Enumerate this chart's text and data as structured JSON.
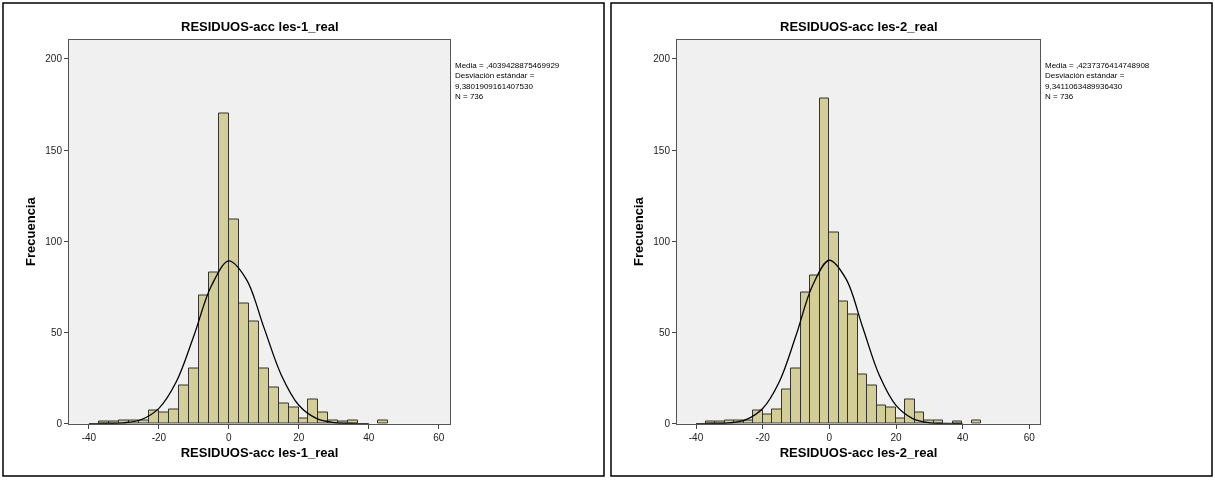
{
  "chart_data": [
    {
      "type": "histogram",
      "title": "RESIDUOS-acc les-1_real",
      "xlabel": "RESIDUOS-acc les-1_real",
      "ylabel": "Frecuencia",
      "annotations": [
        "Media = ,4039428875469929\nDesviación estándar =\n9,3801909161407530\nN = 736"
      ],
      "bins": [
        -37.1,
        -34.25,
        -31.4,
        -28.55,
        -25.7,
        -22.85,
        -20.0,
        -17.15,
        -14.3,
        -11.45,
        -8.6,
        -5.75,
        -2.9,
        -0.05,
        2.8,
        5.65,
        8.5,
        11.35,
        14.2,
        17.05,
        19.9,
        22.75,
        25.6,
        28.45,
        31.3,
        34.15,
        37.0,
        39.85,
        42.7,
        45.55
      ],
      "series": [
        {
          "color": "#d3ce97",
          "values": [
            1,
            1,
            2,
            2,
            2,
            7,
            6,
            8,
            21,
            30,
            70,
            83,
            170,
            112,
            66,
            56,
            30,
            20,
            11,
            9,
            3,
            13,
            6,
            2,
            1,
            2,
            0,
            0,
            2
          ]
        },
        {
          "type": "line",
          "color": "#000000",
          "x": [
            -40,
            -35,
            -30,
            -25,
            -20,
            -15,
            -10,
            -5,
            0,
            5,
            10,
            15,
            20,
            25,
            30,
            35,
            40
          ],
          "values": [
            0,
            0.1,
            0.5,
            2.3,
            8.4,
            23.1,
            48.2,
            75.6,
            89.2,
            79.1,
            52.8,
            26.6,
            10.1,
            2.9,
            0.6,
            0.1,
            0
          ]
        }
      ],
      "xlim": [
        -45.7,
        63.2
      ],
      "ylim": [
        0,
        210.6
      ],
      "xticks": [
        -40,
        -20,
        0,
        20,
        40,
        60
      ],
      "yticks": [
        0,
        50,
        100,
        150,
        200
      ],
      "grid": false
    },
    {
      "type": "histogram",
      "title": "RESIDUOS-acc les-2_real",
      "xlabel": "RESIDUOS-acc les-2_real",
      "ylabel": "Frecuencia",
      "annotations": [
        "Media = ,4237376414748908\nDesviación estándar =\n9,3411063489936430\nN = 736"
      ],
      "bins": [
        -37.1,
        -34.25,
        -31.4,
        -28.55,
        -25.7,
        -22.85,
        -20.0,
        -17.15,
        -14.3,
        -11.45,
        -8.6,
        -5.75,
        -2.9,
        -0.05,
        2.8,
        5.65,
        8.5,
        11.35,
        14.2,
        17.05,
        19.9,
        22.75,
        25.6,
        28.45,
        31.3,
        34.15,
        37.0,
        39.85,
        42.7,
        45.55
      ],
      "series": [
        {
          "color": "#d3ce97",
          "values": [
            1,
            1,
            2,
            2,
            2,
            7,
            5,
            8,
            19,
            30,
            72,
            81,
            178,
            105,
            67,
            60,
            27,
            21,
            10,
            9,
            3,
            13,
            6,
            2,
            2,
            0,
            1,
            0,
            2
          ]
        },
        {
          "type": "line",
          "color": "#000000",
          "x": [
            -40,
            -35,
            -30,
            -25,
            -20,
            -15,
            -10,
            -5,
            0,
            5,
            10,
            15,
            20,
            25,
            30,
            35,
            40
          ],
          "values": [
            0,
            0.1,
            0.4,
            2.2,
            8.3,
            23.0,
            48.3,
            75.9,
            89.6,
            79.4,
            52.9,
            26.5,
            10.0,
            2.8,
            0.5,
            0.1,
            0
          ]
        }
      ],
      "xlim": [
        -45.7,
        63.2
      ],
      "ylim": [
        0,
        210.6
      ],
      "xticks": [
        -40,
        -20,
        0,
        20,
        40,
        60
      ],
      "yticks": [
        0,
        50,
        100,
        150,
        200
      ],
      "grid": false
    }
  ]
}
